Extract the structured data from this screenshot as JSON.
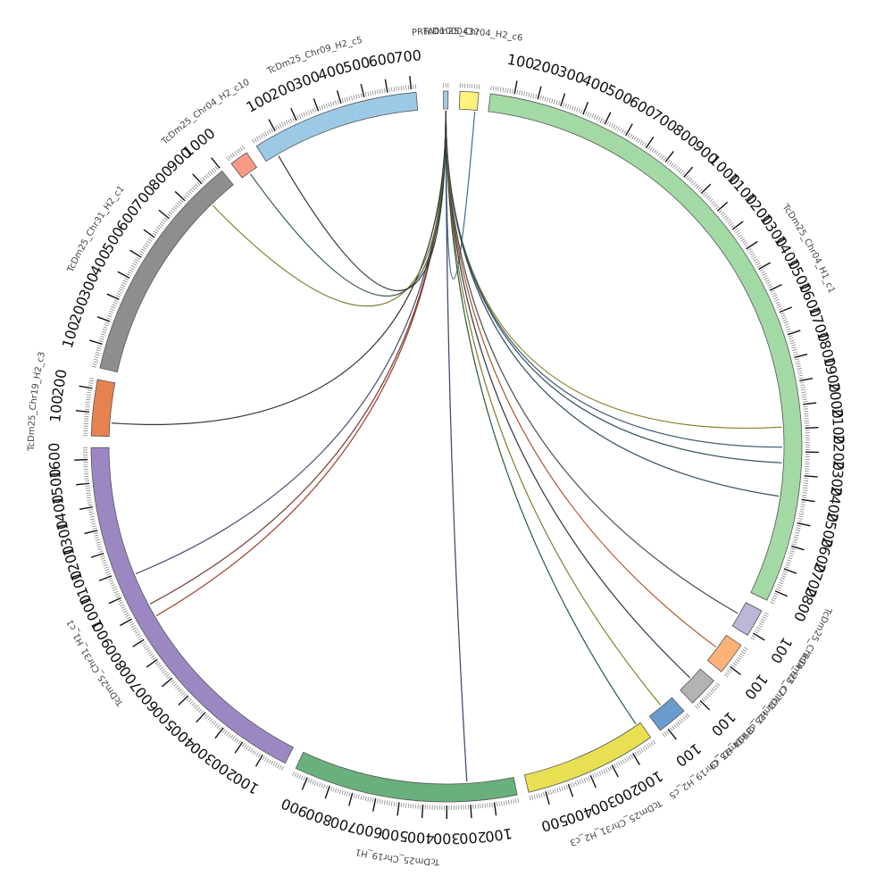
{
  "diagram": {
    "type": "circos",
    "segments": [
      {
        "label": "PRFA01000437",
        "length": 20,
        "color": "#a6c8e4",
        "tick_major": 0
      },
      {
        "label": "TcDm25_Chr04_H2_c6",
        "length": 80,
        "color": "#fff27d",
        "tick_major": 0
      },
      {
        "label": "TcDm25_Chr04_H1_c1",
        "length": 2850,
        "color": "#a3d9a5",
        "tick_major": 100
      },
      {
        "label": "TcDm25_Chr04_H2_c7",
        "length": 120,
        "color": "#bcb6d8",
        "tick_major": 100
      },
      {
        "label": "TcDm25_Chr04_H2_c8",
        "length": 140,
        "color": "#fdb27a",
        "tick_major": 100
      },
      {
        "label": "TcDm25_Chr04_H2_c9",
        "length": 130,
        "color": "#b3b3b3",
        "tick_major": 100
      },
      {
        "label": "TcDm25_Chr19_H2_c5",
        "length": 130,
        "color": "#6a9ccd",
        "tick_major": 100
      },
      {
        "label": "TcDm25_Chr31_H2_c3",
        "length": 570,
        "color": "#e8df52",
        "tick_major": 100
      },
      {
        "label": "TcDm25_Chr19_H1",
        "length": 960,
        "color": "#69b07c",
        "tick_major": 100
      },
      {
        "label": "TcDm25_Chr31_H1_c1",
        "length": 1650,
        "color": "#9b88c3",
        "tick_major": 100
      },
      {
        "label": "TcDm25_Chr19_H2_c3",
        "length": 240,
        "color": "#e68150",
        "tick_major": 100
      },
      {
        "label": "TcDm25_Chr31_H2_c1",
        "length": 1000,
        "color": "#8e8e8e",
        "tick_major": 100
      },
      {
        "label": "TcDm25_Chr04_H2_c10",
        "length": 80,
        "color": "#fb9a84",
        "tick_major": 0
      },
      {
        "label": "TcDm25_Chr09_H2_c5",
        "length": 720,
        "color": "#9ccae6",
        "tick_major": 100
      }
    ],
    "links": [
      {
        "from": 0,
        "to": 1,
        "to_pos": 70,
        "color": "#4a86b8"
      },
      {
        "from": 0,
        "to": 2,
        "to_pos": 2090,
        "color": "#b4a535"
      },
      {
        "from": 0,
        "to": 2,
        "to_pos": 2180,
        "color": "#4a6e8c"
      },
      {
        "from": 0,
        "to": 2,
        "to_pos": 2250,
        "color": "#3d6270"
      },
      {
        "from": 0,
        "to": 2,
        "to_pos": 2400,
        "color": "#3a5a70"
      },
      {
        "from": 0,
        "to": 3,
        "to_pos": 60,
        "color": "#555555"
      },
      {
        "from": 0,
        "to": 4,
        "to_pos": 70,
        "color": "#d4632d"
      },
      {
        "from": 0,
        "to": 5,
        "to_pos": 60,
        "color": "#333355"
      },
      {
        "from": 0,
        "to": 6,
        "to_pos": 60,
        "color": "#9a9a30"
      },
      {
        "from": 0,
        "to": 7,
        "to_pos": 20,
        "color": "#2f6a3a"
      },
      {
        "from": 0,
        "to": 8,
        "to_pos": 210,
        "color": "#3d4a7a"
      },
      {
        "from": 0,
        "to": 9,
        "to_pos": 860,
        "color": "#c2442b"
      },
      {
        "from": 0,
        "to": 9,
        "to_pos": 920,
        "color": "#8a4030"
      },
      {
        "from": 0,
        "to": 9,
        "to_pos": 1070,
        "color": "#5a5a8a"
      },
      {
        "from": 0,
        "to": 10,
        "to_pos": 60,
        "color": "#333333"
      },
      {
        "from": 0,
        "to": 11,
        "to_pos": 870,
        "color": "#9a9a30"
      },
      {
        "from": 0,
        "to": 12,
        "to_pos": 40,
        "color": "#3a6a50"
      },
      {
        "from": 0,
        "to": 13,
        "to_pos": 60,
        "color": "#333333"
      }
    ]
  }
}
